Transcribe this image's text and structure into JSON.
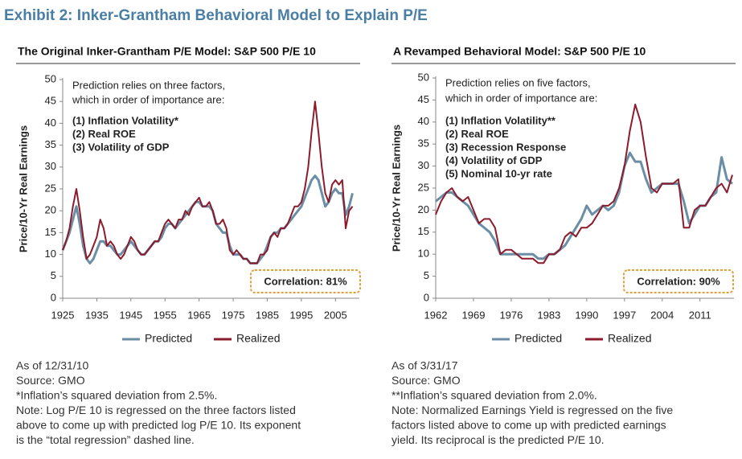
{
  "title": "Exhibit 2: Inker-Grantham Behavioral Model to Explain P/E",
  "chart_data": [
    {
      "type": "line",
      "title": "The Original Inker-Grantham P/E Model: S&P 500 P/E 10",
      "y_label": "Price/10-Yr Real Earnings",
      "annotation": {
        "intro": [
          "Prediction relies on three factors,",
          "which in order of importance are:"
        ],
        "factors": [
          "(1) Inflation Volatility*",
          "(2) Real ROE",
          "(3) Volatility of GDP"
        ]
      },
      "correlation": "Correlation: 81%",
      "x": [
        1925,
        1926,
        1927,
        1928,
        1929,
        1930,
        1931,
        1932,
        1933,
        1934,
        1935,
        1936,
        1937,
        1938,
        1939,
        1940,
        1941,
        1942,
        1943,
        1944,
        1945,
        1946,
        1947,
        1948,
        1949,
        1950,
        1951,
        1952,
        1953,
        1954,
        1955,
        1956,
        1957,
        1958,
        1959,
        1960,
        1961,
        1962,
        1963,
        1964,
        1965,
        1966,
        1967,
        1968,
        1969,
        1970,
        1971,
        1972,
        1973,
        1974,
        1975,
        1976,
        1977,
        1978,
        1979,
        1980,
        1981,
        1982,
        1983,
        1984,
        1985,
        1986,
        1987,
        1988,
        1989,
        1990,
        1991,
        1992,
        1993,
        1994,
        1995,
        1996,
        1997,
        1998,
        1999,
        2000,
        2001,
        2002,
        2003,
        2004,
        2005,
        2006,
        2007,
        2008,
        2009,
        2010
      ],
      "series": [
        {
          "name": "Predicted",
          "color": "#6b8ea6",
          "values": [
            11,
            13,
            15,
            18,
            21,
            17,
            12,
            9,
            8,
            9,
            11,
            13,
            13,
            12,
            12,
            11,
            10,
            10,
            11,
            12,
            13,
            12,
            11,
            10,
            10,
            11,
            12,
            13,
            13,
            14,
            16,
            17,
            17,
            16,
            17,
            18,
            19,
            20,
            21,
            22,
            22,
            21,
            21,
            21,
            20,
            17,
            16,
            15,
            15,
            12,
            10,
            10,
            10,
            9,
            9,
            8,
            8,
            8,
            9,
            10,
            12,
            14,
            15,
            15,
            16,
            16,
            17,
            18,
            19,
            20,
            21,
            23,
            25,
            27,
            28,
            27,
            24,
            21,
            22,
            24,
            25,
            24,
            24,
            19,
            21,
            24
          ]
        },
        {
          "name": "Realized",
          "color": "#8c1c2c",
          "values": [
            11,
            13,
            16,
            21,
            25,
            20,
            14,
            9,
            10,
            12,
            14,
            18,
            16,
            12,
            13,
            12,
            10,
            9,
            10,
            12,
            14,
            13,
            11,
            10,
            10,
            11,
            12,
            13,
            13,
            15,
            17,
            18,
            17,
            16,
            18,
            18,
            20,
            19,
            21,
            22,
            23,
            21,
            21,
            22,
            20,
            17,
            17,
            18,
            16,
            11,
            10,
            11,
            10,
            9,
            9,
            8,
            8,
            8,
            10,
            10,
            11,
            14,
            15,
            14,
            16,
            16,
            17,
            19,
            21,
            21,
            22,
            25,
            30,
            38,
            45,
            38,
            30,
            24,
            22,
            26,
            27,
            26,
            27,
            16,
            20,
            21
          ]
        }
      ],
      "xlim": [
        1925,
        2012
      ],
      "ylim": [
        0,
        50
      ],
      "xticks": [
        1925,
        1935,
        1945,
        1955,
        1965,
        1975,
        1985,
        1995,
        2005
      ],
      "yticks": [
        0,
        5,
        10,
        15,
        20,
        25,
        30,
        35,
        40,
        45,
        50
      ],
      "legend": "bottom",
      "notes": [
        "As of 12/31/10",
        "Source: GMO",
        "*Inflation’s squared deviation from 2.5%.",
        "Note: Log P/E 10 is regressed on the three factors listed",
        "above to come up with predicted log P/E 10. Its exponent",
        "is the “total regression” dashed line."
      ]
    },
    {
      "type": "line",
      "title": "A Revamped Behavioral Model: S&P 500 P/E 10",
      "y_label": "Price/10-Yr Real Earnings",
      "annotation": {
        "intro": [
          "Prediction relies on five factors,",
          "which in order of importance are:"
        ],
        "factors": [
          "(1) Inflation Volatility**",
          "(2) Real ROE",
          "(3) Recession Response",
          "(4) Volatility of GDP",
          "(5) Nominal 10-yr rate"
        ]
      },
      "correlation": "Correlation: 90%",
      "x": [
        1962,
        1963,
        1964,
        1965,
        1966,
        1967,
        1968,
        1969,
        1970,
        1971,
        1972,
        1973,
        1974,
        1975,
        1976,
        1977,
        1978,
        1979,
        1980,
        1981,
        1982,
        1983,
        1984,
        1985,
        1986,
        1987,
        1988,
        1989,
        1990,
        1991,
        1992,
        1993,
        1994,
        1995,
        1996,
        1997,
        1998,
        1999,
        2000,
        2001,
        2002,
        2003,
        2004,
        2005,
        2006,
        2007,
        2008,
        2009,
        2010,
        2011,
        2012,
        2013,
        2014,
        2015,
        2016,
        2017
      ],
      "series": [
        {
          "name": "Predicted",
          "color": "#6b8ea6",
          "values": [
            22,
            23,
            24,
            24,
            23,
            22,
            21,
            19,
            17,
            16,
            15,
            13,
            10,
            10,
            10,
            10,
            10,
            10,
            10,
            9,
            9,
            10,
            10,
            11,
            12,
            14,
            16,
            18,
            21,
            19,
            20,
            21,
            20,
            21,
            24,
            30,
            33,
            31,
            31,
            27,
            24,
            25,
            26,
            26,
            26,
            26,
            22,
            17,
            19,
            21,
            21,
            23,
            24,
            32,
            27,
            26
          ]
        },
        {
          "name": "Realized",
          "color": "#8c1c2c",
          "values": [
            19,
            22,
            24,
            25,
            23,
            22,
            23,
            20,
            17,
            18,
            18,
            16,
            10,
            11,
            11,
            10,
            9,
            9,
            9,
            8,
            8,
            10,
            10,
            11,
            14,
            15,
            14,
            16,
            16,
            17,
            19,
            21,
            21,
            22,
            25,
            30,
            38,
            44,
            40,
            32,
            25,
            24,
            26,
            26,
            26,
            27,
            16,
            16,
            20,
            21,
            21,
            23,
            25,
            26,
            24,
            28
          ]
        }
      ],
      "xlim": [
        1962,
        2017.3
      ],
      "ylim": [
        0,
        50
      ],
      "xticks": [
        1962,
        1969,
        1976,
        1983,
        1990,
        1997,
        2004,
        2011
      ],
      "yticks": [
        0,
        5,
        10,
        15,
        20,
        25,
        30,
        35,
        40,
        45,
        50
      ],
      "legend": "bottom",
      "notes": [
        "As of 3/31/17",
        "Source: GMO",
        "**Inflation’s squared deviation from 2.0%.",
        "Note: Normalized Earnings Yield is regressed on the five",
        "factors listed above to come up with predicted earnings",
        "yield. Its reciprocal is the predicted P/E 10."
      ]
    }
  ]
}
